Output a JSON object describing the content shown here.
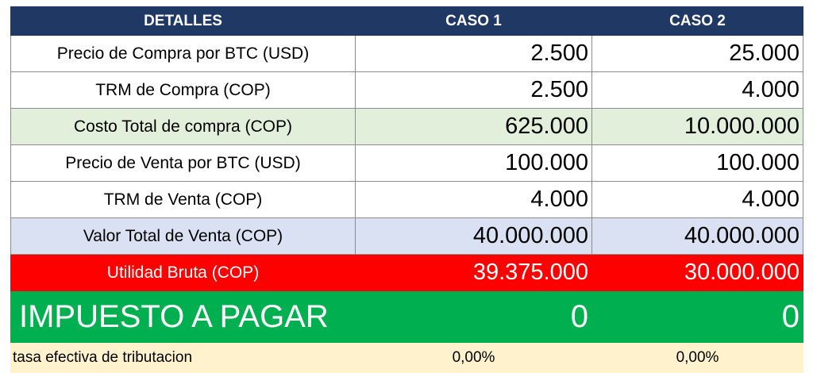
{
  "header": {
    "details": "DETALLES",
    "case1": "CASO 1",
    "case2": "CASO 2"
  },
  "rows": [
    {
      "label": "Precio de Compra por BTC (USD)",
      "case1": "2.500",
      "case2": "25.000"
    },
    {
      "label": "TRM de Compra (COP)",
      "case1": "2.500",
      "case2": "4.000"
    },
    {
      "label": "Costo Total de compra (COP)",
      "case1": "625.000",
      "case2": "10.000.000"
    },
    {
      "label": "Precio de Venta por BTC (USD)",
      "case1": "100.000",
      "case2": "100.000"
    },
    {
      "label": "TRM de Venta (COP)",
      "case1": "4.000",
      "case2": "4.000"
    },
    {
      "label": "Valor Total de Venta (COP)",
      "case1": "40.000.000",
      "case2": "40.000.000"
    },
    {
      "label": "Utilidad Bruta (COP)",
      "case1": "39.375.000",
      "case2": "30.000.000"
    }
  ],
  "tax": {
    "label": "IMPUESTO A PAGAR",
    "case1": "0",
    "case2": "0"
  },
  "rate": {
    "label": "tasa efectiva de tributacion",
    "case1": "0,00%",
    "case2": "0,00%"
  },
  "colors": {
    "header_bg": "#203864",
    "cost_row_bg": "#e2efda",
    "sale_row_bg": "#d9e1f2",
    "profit_row_bg": "#ff0000",
    "tax_row_bg": "#00b050",
    "rate_row_bg": "#fff2cc"
  }
}
